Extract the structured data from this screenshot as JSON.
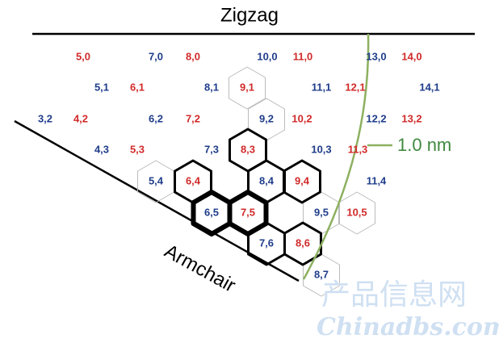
{
  "title": "Zigzag",
  "armchair_label": "Armchair",
  "curve_label": "1.0 nm",
  "watermark": {
    "chinese": "产品信息网",
    "english": "Chinadbs.com"
  },
  "colors": {
    "blue": "#1f3d8a",
    "red": "#d12a2a",
    "green": "#8db060",
    "watermark": "#cfe0f2"
  },
  "labels": [
    {
      "text": "5,0",
      "color": "red"
    },
    {
      "text": "7,0",
      "color": "blue"
    },
    {
      "text": "8,0",
      "color": "red"
    },
    {
      "text": "10,0",
      "color": "blue"
    },
    {
      "text": "11,0",
      "color": "red"
    },
    {
      "text": "13,0",
      "color": "blue"
    },
    {
      "text": "14,0",
      "color": "red"
    },
    {
      "text": "5,1",
      "color": "blue"
    },
    {
      "text": "6,1",
      "color": "red"
    },
    {
      "text": "8,1",
      "color": "blue"
    },
    {
      "text": "9,1",
      "color": "red"
    },
    {
      "text": "11,1",
      "color": "blue"
    },
    {
      "text": "12,1",
      "color": "red"
    },
    {
      "text": "14,1",
      "color": "blue"
    },
    {
      "text": "3,2",
      "color": "blue"
    },
    {
      "text": "4,2",
      "color": "red"
    },
    {
      "text": "6,2",
      "color": "blue"
    },
    {
      "text": "7,2",
      "color": "red"
    },
    {
      "text": "9,2",
      "color": "blue"
    },
    {
      "text": "10,2",
      "color": "red"
    },
    {
      "text": "12,2",
      "color": "blue"
    },
    {
      "text": "13,2",
      "color": "red"
    },
    {
      "text": "4,3",
      "color": "blue"
    },
    {
      "text": "5,3",
      "color": "red"
    },
    {
      "text": "7,3",
      "color": "blue"
    },
    {
      "text": "8,3",
      "color": "red"
    },
    {
      "text": "10,3",
      "color": "blue"
    },
    {
      "text": "11,3",
      "color": "red"
    },
    {
      "text": "5,4",
      "color": "blue"
    },
    {
      "text": "6,4",
      "color": "red"
    },
    {
      "text": "8,4",
      "color": "blue"
    },
    {
      "text": "9,4",
      "color": "red"
    },
    {
      "text": "11,4",
      "color": "blue"
    },
    {
      "text": "6,5",
      "color": "blue"
    },
    {
      "text": "7,5",
      "color": "red"
    },
    {
      "text": "9,5",
      "color": "blue"
    },
    {
      "text": "10,5",
      "color": "red"
    },
    {
      "text": "7,6",
      "color": "blue"
    },
    {
      "text": "8,6",
      "color": "red"
    },
    {
      "text": "8,7",
      "color": "blue"
    }
  ]
}
